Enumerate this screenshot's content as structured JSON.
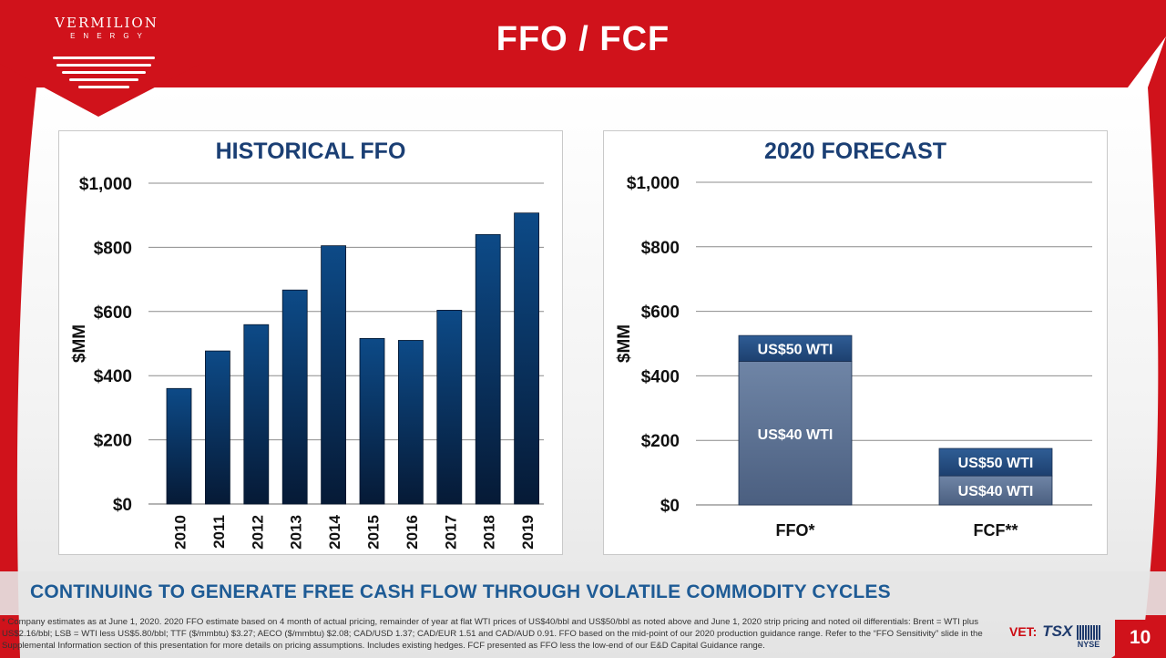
{
  "header": {
    "title": "FFO / FCF"
  },
  "logo": {
    "name": "VERMILION",
    "sub": "ENERGY"
  },
  "colors": {
    "red": "#d0121b",
    "navy": "#0b2f5c",
    "accent_blue": "#1e5b95",
    "forecast_base": "#5a6f8f"
  },
  "chart_data": [
    {
      "type": "bar",
      "title": "HISTORICAL FFO",
      "ylabel": "$MM",
      "xlabel": "",
      "categories": [
        "2010",
        "2011",
        "2012",
        "2013",
        "2014",
        "2015",
        "2016",
        "2017",
        "2018",
        "2019"
      ],
      "values": [
        360,
        477,
        559,
        667,
        805,
        516,
        510,
        604,
        840,
        907
      ],
      "ylim": [
        0,
        1000
      ],
      "yticks": [
        0,
        200,
        400,
        600,
        800,
        1000
      ],
      "ytick_labels": [
        "$0",
        "$200",
        "$400",
        "$600",
        "$800",
        "$1,000"
      ],
      "grid": true
    },
    {
      "type": "bar",
      "stacked": true,
      "title": "2020 FORECAST",
      "ylabel": "$MM",
      "xlabel": "",
      "categories": [
        "FFO*",
        "FCF**"
      ],
      "series": [
        {
          "name": "US$40 WTI",
          "values": [
            445,
            90
          ]
        },
        {
          "name": "US$50 WTI",
          "values": [
            80,
            85
          ]
        }
      ],
      "ylim": [
        0,
        1000
      ],
      "yticks": [
        0,
        200,
        400,
        600,
        800,
        1000
      ],
      "ytick_labels": [
        "$0",
        "$200",
        "$400",
        "$600",
        "$800",
        "$1,000"
      ],
      "grid": true
    }
  ],
  "tagline": "CONTINUING TO GENERATE FREE CASH FLOW THROUGH VOLATILE COMMODITY CYCLES",
  "footnote": "* Company estimates as at June 1, 2020. 2020 FFO estimate based on 4 month of actual pricing, remainder of year at flat WTI prices of US$40/bbl and US$50/bbl as noted above and June 1, 2020 strip pricing and noted oil differentials: Brent = WTI plus US$2.16/bbl; LSB = WTI less US$5.80/bbl; TTF ($/mmbtu) $3.27; AECO ($/mmbtu) $2.08; CAD/USD 1.37; CAD/EUR 1.51 and CAD/AUD 0.91. FFO based on the mid-point of our 2020 production guidance range. Refer to the “FFO Sensitivity” slide in the Supplemental Information section of this presentation for more details on pricing assumptions. Includes existing hedges. FCF presented as FFO less the low-end of our E&D Capital Guidance range.",
  "footer": {
    "ticker_prefix": "VET:",
    "exchange_tsx": "TSX",
    "exchange_nyse": "NYSE",
    "page_number": "10"
  }
}
